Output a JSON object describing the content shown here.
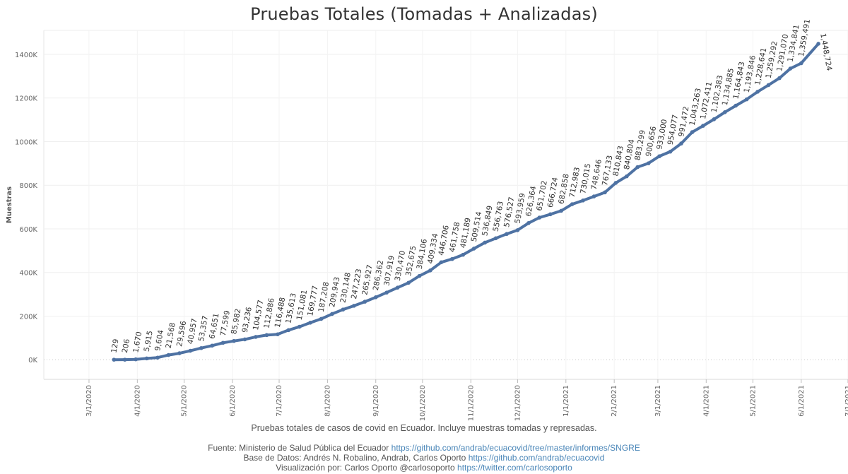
{
  "chart_data": {
    "type": "line",
    "title": "Pruebas Totales (Tomadas + Analizadas)",
    "ylabel": "Muestras",
    "xlabel": "",
    "ylim": [
      -90000,
      1510000
    ],
    "xlim": [
      "2020-02-01",
      "2021-07-01"
    ],
    "y_ticks": [
      0,
      200000,
      400000,
      600000,
      800000,
      1000000,
      1200000,
      1400000
    ],
    "y_tick_labels": [
      "0K",
      "200K",
      "400K",
      "600K",
      "800K",
      "1000K",
      "1200K",
      "1400K"
    ],
    "x_ticks": [
      "2020-03-01",
      "2020-04-01",
      "2020-05-01",
      "2020-06-01",
      "2020-07-01",
      "2020-08-01",
      "2020-09-01",
      "2020-10-01",
      "2020-11-01",
      "2020-12-01",
      "2021-01-01",
      "2021-02-01",
      "2021-03-01",
      "2021-04-01",
      "2021-05-01",
      "2021-06-01",
      "2021-07-01"
    ],
    "x_tick_labels": [
      "3/1/2020",
      "4/1/2020",
      "5/1/2020",
      "6/1/2020",
      "7/1/2020",
      "8/1/2020",
      "9/1/2020",
      "10/1/2020",
      "11/1/2020",
      "12/1/2020",
      "1/1/2021",
      "2/1/2021",
      "3/1/2021",
      "4/1/2021",
      "5/1/2021",
      "6/1/2021",
      "7/1/2021"
    ],
    "grid": true,
    "series": [
      {
        "name": "",
        "color": "#4e72a3",
        "points": [
          {
            "x": "2020-03-17",
            "y": 129,
            "label": "129"
          },
          {
            "x": "2020-03-24",
            "y": 206,
            "label": "206"
          },
          {
            "x": "2020-03-31",
            "y": 1670,
            "label": "1,670"
          },
          {
            "x": "2020-04-07",
            "y": 5915,
            "label": "5,915"
          },
          {
            "x": "2020-04-14",
            "y": 9604,
            "label": "9,604"
          },
          {
            "x": "2020-04-21",
            "y": 21568,
            "label": "21,568"
          },
          {
            "x": "2020-04-28",
            "y": 29596,
            "label": "29,596"
          },
          {
            "x": "2020-05-05",
            "y": 40957,
            "label": "40,957"
          },
          {
            "x": "2020-05-12",
            "y": 53357,
            "label": "53,357"
          },
          {
            "x": "2020-05-19",
            "y": 64651,
            "label": "64,651"
          },
          {
            "x": "2020-05-26",
            "y": 77599,
            "label": "77,599"
          },
          {
            "x": "2020-06-02",
            "y": 85982,
            "label": "85,982"
          },
          {
            "x": "2020-06-09",
            "y": 93236,
            "label": "93,236"
          },
          {
            "x": "2020-06-16",
            "y": 104577,
            "label": "104,577"
          },
          {
            "x": "2020-06-23",
            "y": 112886,
            "label": "112,886"
          },
          {
            "x": "2020-06-30",
            "y": 116488,
            "label": "116,488"
          },
          {
            "x": "2020-07-07",
            "y": 135613,
            "label": "135,613"
          },
          {
            "x": "2020-07-14",
            "y": 151081,
            "label": "151,081"
          },
          {
            "x": "2020-07-21",
            "y": 169777,
            "label": "169,777"
          },
          {
            "x": "2020-07-28",
            "y": 187208,
            "label": "187,208"
          },
          {
            "x": "2020-08-04",
            "y": 209943,
            "label": "209,943"
          },
          {
            "x": "2020-08-11",
            "y": 230148,
            "label": "230,148"
          },
          {
            "x": "2020-08-18",
            "y": 247223,
            "label": "247,223"
          },
          {
            "x": "2020-08-25",
            "y": 265927,
            "label": "265,927"
          },
          {
            "x": "2020-09-01",
            "y": 286362,
            "label": "286,362"
          },
          {
            "x": "2020-09-08",
            "y": 307919,
            "label": "307,919"
          },
          {
            "x": "2020-09-15",
            "y": 330470,
            "label": "330,470"
          },
          {
            "x": "2020-09-22",
            "y": 352675,
            "label": "352,675"
          },
          {
            "x": "2020-09-29",
            "y": 384106,
            "label": "384,106"
          },
          {
            "x": "2020-10-06",
            "y": 409334,
            "label": "409,334"
          },
          {
            "x": "2020-10-13",
            "y": 446706,
            "label": "446,706"
          },
          {
            "x": "2020-10-20",
            "y": 461758,
            "label": "461,758"
          },
          {
            "x": "2020-10-27",
            "y": 481189,
            "label": "481,189"
          },
          {
            "x": "2020-11-03",
            "y": 509514,
            "label": "509,514"
          },
          {
            "x": "2020-11-10",
            "y": 536849,
            "label": "536,849"
          },
          {
            "x": "2020-11-17",
            "y": 556763,
            "label": "556,763"
          },
          {
            "x": "2020-11-24",
            "y": 576527,
            "label": "576,527"
          },
          {
            "x": "2020-12-01",
            "y": 593959,
            "label": "593,959"
          },
          {
            "x": "2020-12-08",
            "y": 626364,
            "label": "626,364"
          },
          {
            "x": "2020-12-15",
            "y": 651702,
            "label": "651,702"
          },
          {
            "x": "2020-12-22",
            "y": 666724,
            "label": "666,724"
          },
          {
            "x": "2020-12-29",
            "y": 682858,
            "label": "682,858"
          },
          {
            "x": "2021-01-05",
            "y": 712983,
            "label": "712,983"
          },
          {
            "x": "2021-01-12",
            "y": 730015,
            "label": "730,015"
          },
          {
            "x": "2021-01-19",
            "y": 748646,
            "label": "748,646"
          },
          {
            "x": "2021-01-26",
            "y": 767133,
            "label": "767,133"
          },
          {
            "x": "2021-02-02",
            "y": 810843,
            "label": "810,843"
          },
          {
            "x": "2021-02-09",
            "y": 840804,
            "label": "840,804"
          },
          {
            "x": "2021-02-16",
            "y": 883299,
            "label": "883,299"
          },
          {
            "x": "2021-02-23",
            "y": 900656,
            "label": "900,656"
          },
          {
            "x": "2021-03-02",
            "y": 933000,
            "label": "933,000"
          },
          {
            "x": "2021-03-09",
            "y": 954077,
            "label": "954,077"
          },
          {
            "x": "2021-03-16",
            "y": 991472,
            "label": "991,472"
          },
          {
            "x": "2021-03-23",
            "y": 1043263,
            "label": "1,043,263"
          },
          {
            "x": "2021-03-30",
            "y": 1072411,
            "label": "1,072,411"
          },
          {
            "x": "2021-04-06",
            "y": 1102383,
            "label": "1,102,383"
          },
          {
            "x": "2021-04-13",
            "y": 1134885,
            "label": "1,134,885"
          },
          {
            "x": "2021-04-20",
            "y": 1164843,
            "label": "1,164,843"
          },
          {
            "x": "2021-04-27",
            "y": 1193846,
            "label": "1,193,846"
          },
          {
            "x": "2021-05-04",
            "y": 1228641,
            "label": "1,228,641"
          },
          {
            "x": "2021-05-11",
            "y": 1259292,
            "label": "1,259,292"
          },
          {
            "x": "2021-05-18",
            "y": 1291070,
            "label": "1,291,070"
          },
          {
            "x": "2021-05-25",
            "y": 1334841,
            "label": "1,334,841"
          },
          {
            "x": "2021-06-01",
            "y": 1359491,
            "label": "1,359,491"
          },
          {
            "x": "2021-06-12",
            "y": 1448724,
            "label": "1,448,724"
          }
        ]
      }
    ]
  },
  "footer": {
    "caption": "Pruebas totales de casos de covid en Ecuador. Incluye muestras tomadas y represadas.",
    "source_text": "Fuente: Ministerio de Salud Pública del Ecuador",
    "source_link": "https://github.com/andrab/ecuacovid/tree/master/informes/SNGRE",
    "db_text": "Base de Datos: Andrés N. Robalino, Andrab, Carlos Oporto",
    "db_link": "https://github.com/andrab/ecuacovid",
    "viz_text": "Visualización por: Carlos Oporto @carlosoporto",
    "viz_link": "https://twitter.com/carlosoporto"
  }
}
